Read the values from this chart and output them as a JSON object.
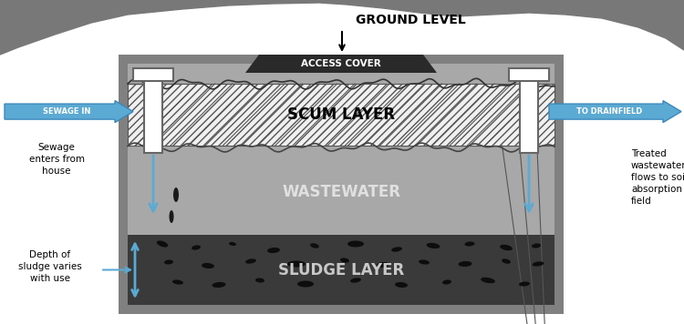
{
  "bg_color": "#ffffff",
  "ground_level_text": "GROUND LEVEL",
  "access_cover_text": "ACCESS COVER",
  "scum_label": "SCUM LAYER",
  "wastewater_label": "WASTEWATER",
  "sludge_label": "SLUDGE LAYER",
  "sewage_in_label": "SEWAGE IN",
  "to_drainfield_label": "TO DRAINFIELD",
  "sewage_enters_text": "Sewage\nenters from\nhouse",
  "treated_text": "Treated\nwastewater\nflows to soil\nabsorption\nfield",
  "sludge_depth_text": "Depth of\nsludge varies\nwith use",
  "arrow_color": "#5baad4",
  "tank_border_color": "#808080",
  "tank_bg_color": "#ffffff",
  "scum_hatch_color": "#555555",
  "waste_color": "#a8a8a8",
  "sludge_color": "#3a3a3a",
  "pipe_color": "#ffffff",
  "pipe_edge_color": "#666666",
  "cover_color": "#2a2a2a",
  "ground_color": "#787878"
}
